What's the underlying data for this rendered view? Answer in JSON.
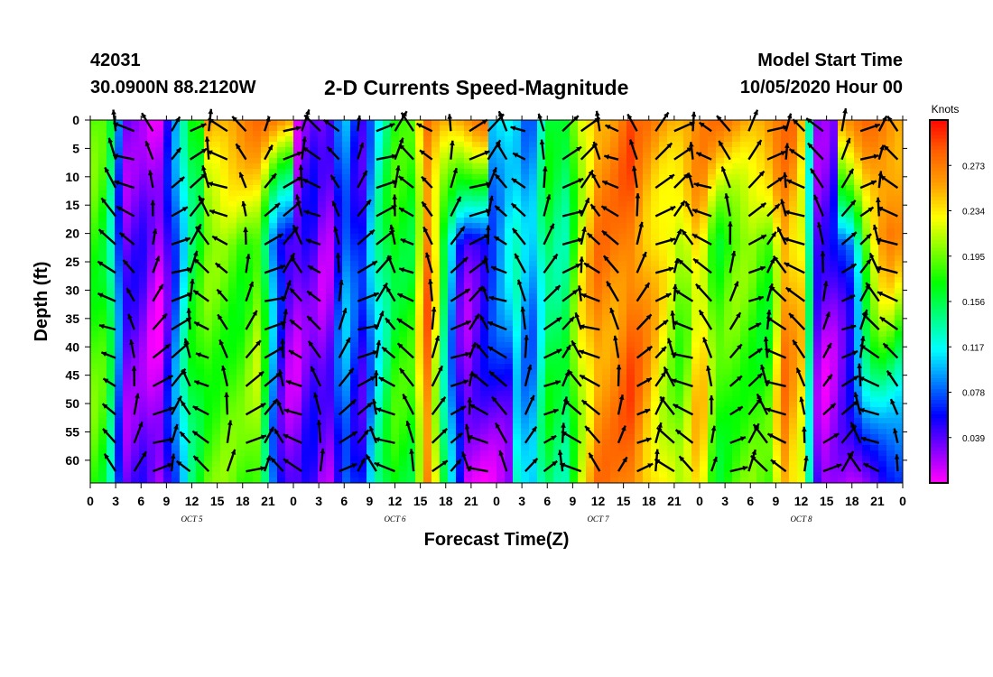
{
  "header": {
    "station_id": "42031",
    "location": "30.0900N 88.2120W",
    "title": "2-D Currents Speed-Magnitude",
    "model_label": "Model Start Time",
    "model_time": "10/05/2020 Hour 00"
  },
  "chart_data": {
    "type": "heatmap",
    "title": "2-D Currents Speed-Magnitude",
    "xlabel": "Forecast Time(Z)",
    "ylabel": "Depth (ft)",
    "x_ticks": [
      "0",
      "3",
      "6",
      "9",
      "12",
      "15",
      "18",
      "21",
      "0",
      "3",
      "6",
      "9",
      "12",
      "15",
      "18",
      "21",
      "0",
      "3",
      "6",
      "9",
      "12",
      "15",
      "18",
      "21",
      "0",
      "3",
      "6",
      "9",
      "12",
      "15",
      "18",
      "21",
      "0"
    ],
    "x_range_hours": [
      0,
      96
    ],
    "day_labels": [
      {
        "label": "OCT 5",
        "hour": 12
      },
      {
        "label": "OCT 6",
        "hour": 36
      },
      {
        "label": "OCT 7",
        "hour": 60
      },
      {
        "label": "OCT 8",
        "hour": 84
      }
    ],
    "y_ticks": [
      0,
      5,
      10,
      15,
      20,
      25,
      30,
      35,
      40,
      45,
      50,
      55,
      60
    ],
    "y_range_ft": [
      0,
      64
    ],
    "colorbar": {
      "unit_label": "Knots",
      "ticks": [
        "0.273",
        "0.234",
        "0.195",
        "0.156",
        "0.117",
        "0.078",
        "0.039"
      ],
      "range": [
        0.0,
        0.312
      ],
      "colormap": [
        "#ff00ff",
        "#8000ff",
        "#0000ff",
        "#0080ff",
        "#00ffff",
        "#00ff80",
        "#00ff00",
        "#80ff00",
        "#ffff00",
        "#ffa000",
        "#ff6000",
        "#ff0000"
      ]
    }
  }
}
